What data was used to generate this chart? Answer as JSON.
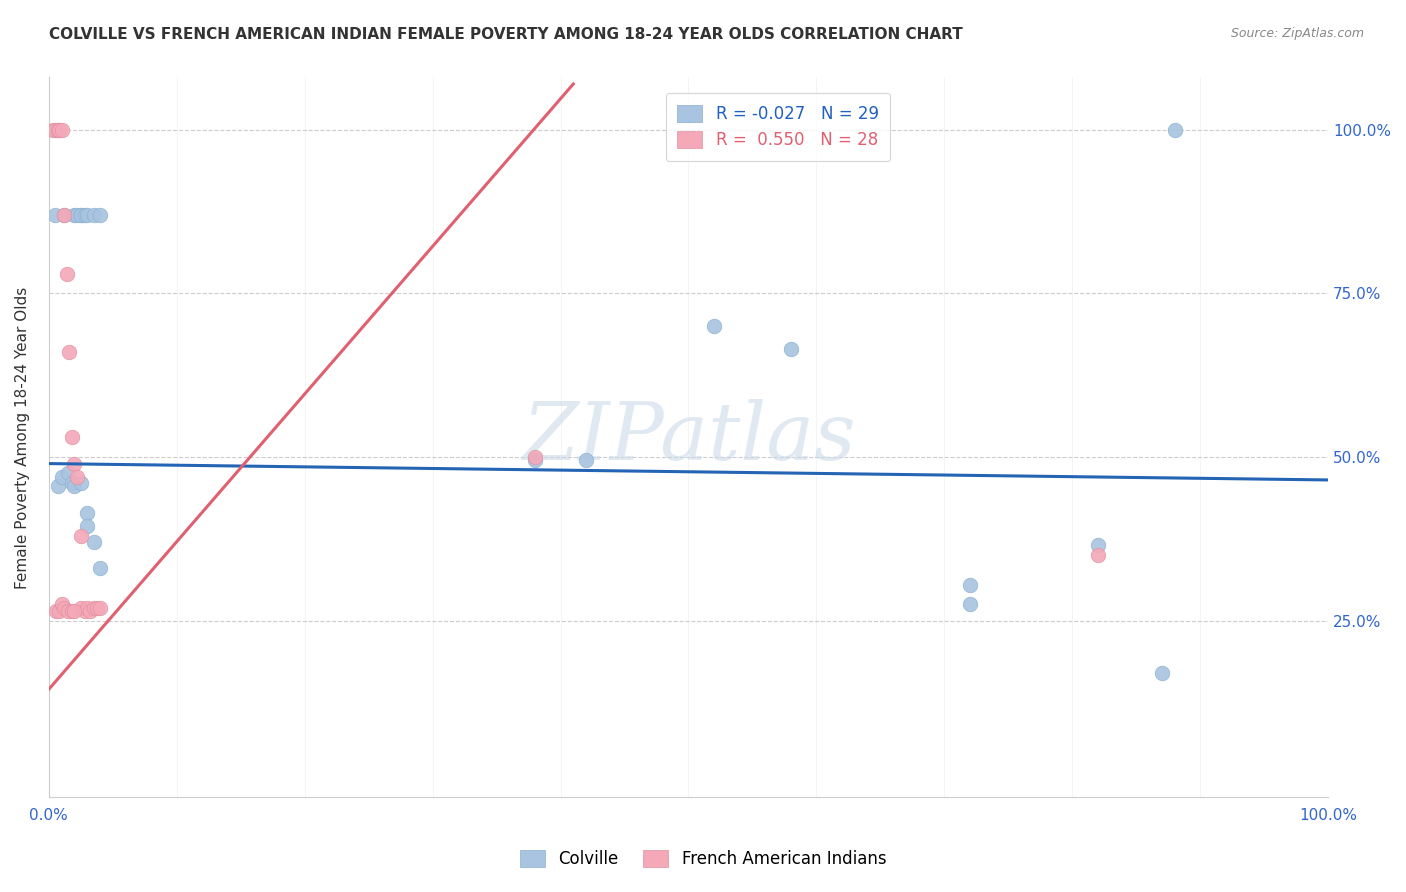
{
  "title": "COLVILLE VS FRENCH AMERICAN INDIAN FEMALE POVERTY AMONG 18-24 YEAR OLDS CORRELATION CHART",
  "source": "Source: ZipAtlas.com",
  "ylabel": "Female Poverty Among 18-24 Year Olds",
  "xlim": [
    0.0,
    1.0
  ],
  "ylim": [
    -0.02,
    1.08
  ],
  "blue_R": "-0.027",
  "blue_N": "29",
  "pink_R": "0.550",
  "pink_N": "28",
  "blue_color": "#a8c4e0",
  "pink_color": "#f4a8b8",
  "blue_line_color": "#2464b4",
  "pink_line_color": "#e06070",
  "legend_blue_label": "Colville",
  "legend_pink_label": "French American Indians",
  "blue_scatter_x": [
    0.005,
    0.012,
    0.02,
    0.022,
    0.025,
    0.025,
    0.028,
    0.03,
    0.035,
    0.04,
    0.007,
    0.01,
    0.015,
    0.018,
    0.02,
    0.025,
    0.03,
    0.03,
    0.035,
    0.04,
    0.38,
    0.42,
    0.52,
    0.58,
    0.72,
    0.72,
    0.82,
    0.87,
    0.88
  ],
  "blue_scatter_y": [
    0.87,
    0.87,
    0.87,
    0.87,
    0.87,
    0.87,
    0.87,
    0.87,
    0.87,
    0.87,
    0.455,
    0.47,
    0.475,
    0.46,
    0.455,
    0.46,
    0.415,
    0.395,
    0.37,
    0.33,
    0.495,
    0.495,
    0.7,
    0.665,
    0.305,
    0.275,
    0.365,
    0.17,
    1.0
  ],
  "pink_scatter_x": [
    0.003,
    0.005,
    0.007,
    0.008,
    0.01,
    0.012,
    0.014,
    0.016,
    0.018,
    0.02,
    0.022,
    0.025,
    0.025,
    0.028,
    0.03,
    0.032,
    0.035,
    0.038,
    0.04,
    0.006,
    0.008,
    0.01,
    0.012,
    0.015,
    0.018,
    0.02,
    0.38,
    0.82
  ],
  "pink_scatter_y": [
    1.0,
    1.0,
    1.0,
    1.0,
    1.0,
    0.87,
    0.78,
    0.66,
    0.53,
    0.49,
    0.47,
    0.38,
    0.27,
    0.265,
    0.27,
    0.265,
    0.27,
    0.27,
    0.27,
    0.265,
    0.265,
    0.275,
    0.27,
    0.265,
    0.265,
    0.265,
    0.5,
    0.35
  ],
  "blue_trendline_x": [
    0.0,
    1.0
  ],
  "blue_trendline_y": [
    0.49,
    0.465
  ],
  "pink_trendline_x": [
    0.0,
    0.41
  ],
  "pink_trendline_y": [
    0.145,
    1.07
  ],
  "watermark": "ZIPatlas",
  "background_color": "#ffffff",
  "grid_color": "#cccccc"
}
